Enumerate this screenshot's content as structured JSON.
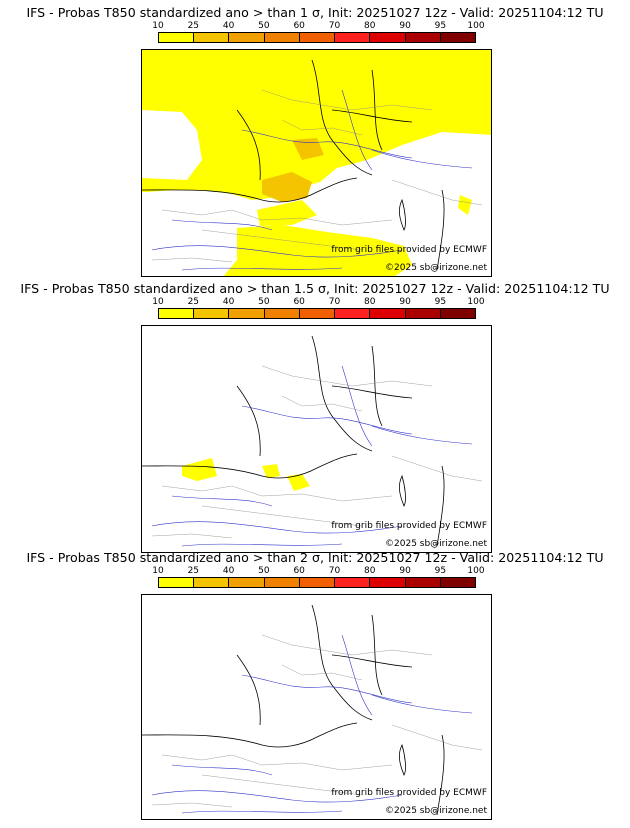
{
  "scale": {
    "labels": [
      "10",
      "25",
      "40",
      "50",
      "60",
      "70",
      "80",
      "90",
      "95",
      "100"
    ],
    "colors": [
      "#ffff00",
      "#f5c400",
      "#f0a000",
      "#f08000",
      "#f06000",
      "#ff2020",
      "#dd0000",
      "#aa0000",
      "#800000"
    ]
  },
  "panels": [
    {
      "title": "IFS - Probas T850  standardized ano > than 1 σ, Init: 20251027 12z - Valid: 20251104:12 TU",
      "source": "from grib files provided by ECMWF",
      "copyright": "©2025 sb@irizone.net"
    },
    {
      "title": "IFS - Probas T850  standardized ano > than 1.5 σ, Init: 20251027 12z - Valid: 20251104:12 TU",
      "source": "from grib files provided by ECMWF",
      "copyright": "©2025 sb@irizone.net"
    },
    {
      "title": "IFS - Probas T850  standardized ano > than 2 σ, Init: 20251027 12z - Valid: 20251104:12 TU",
      "source": "from grib files provided by ECMWF",
      "copyright": "©2025 sb@irizone.net"
    }
  ]
}
